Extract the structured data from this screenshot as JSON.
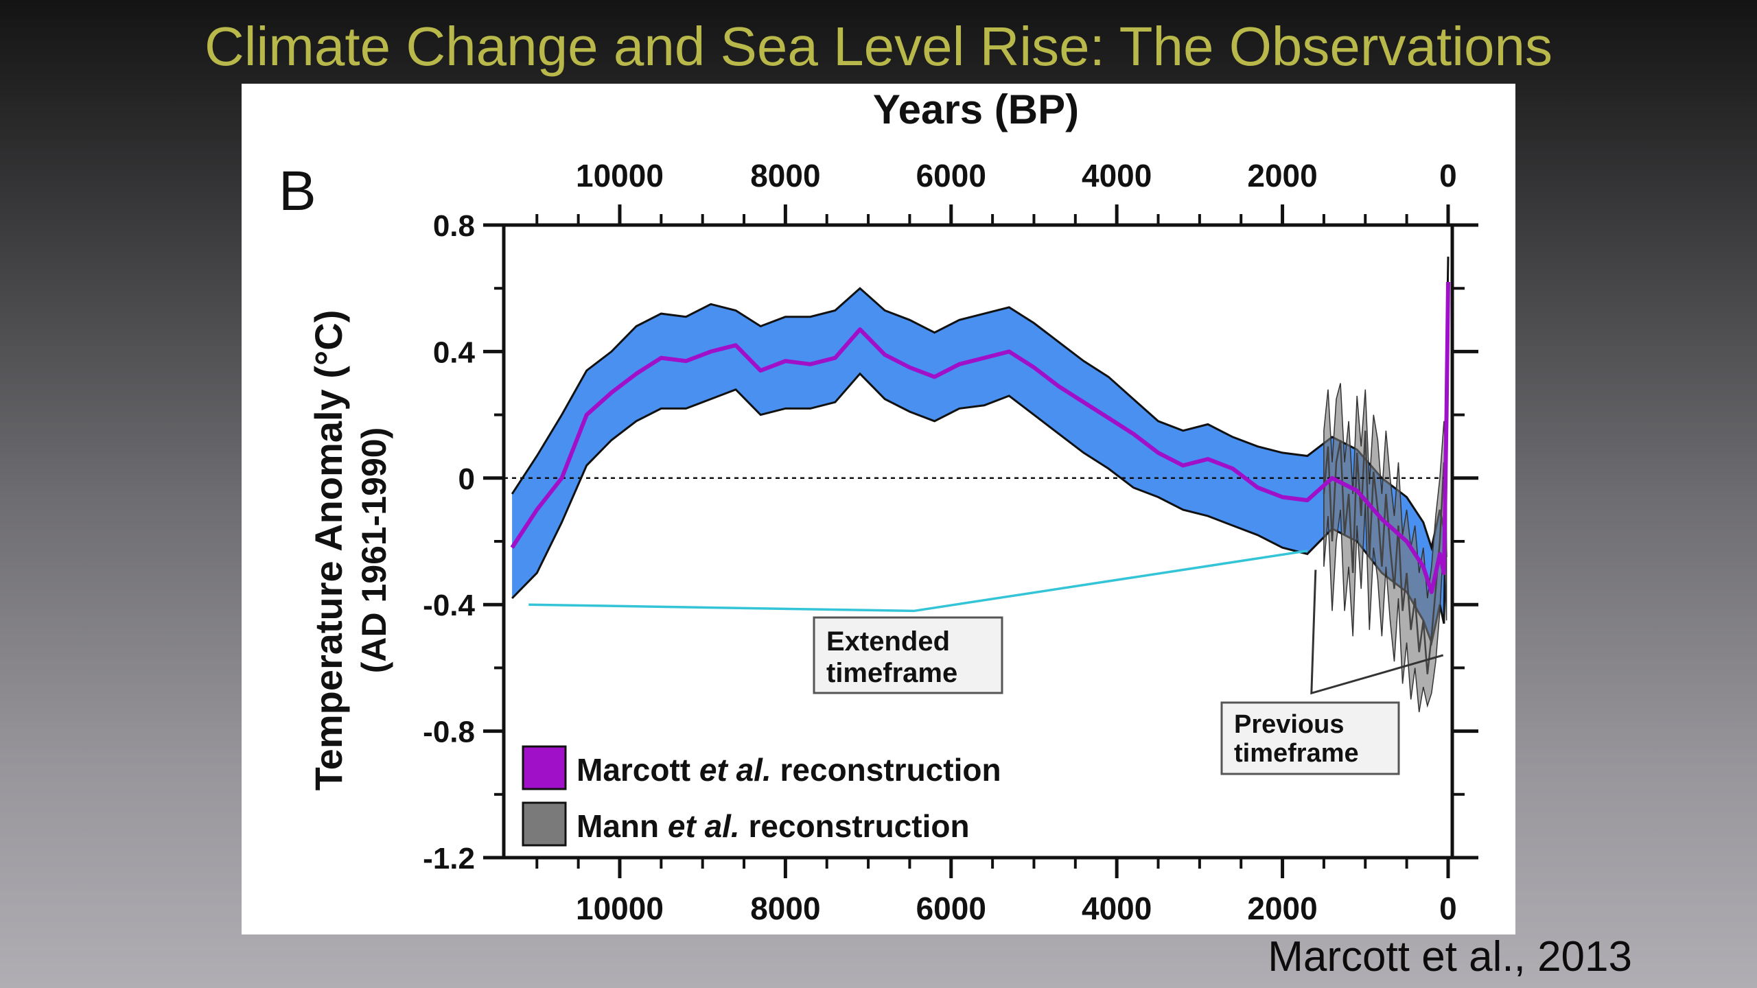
{
  "slide": {
    "title": "Climate Change and Sea Level Rise: The Observations",
    "citation": "Marcott et al., 2013"
  },
  "chart_data": {
    "type": "line",
    "panel_label": "B",
    "xlabel": "Years (BP)",
    "ylabel": "Temperature Anomaly (°C)",
    "ylabel2": "(AD 1961-1990)",
    "xlim": [
      11400,
      -50
    ],
    "ylim": [
      -1.2,
      0.8
    ],
    "x_ticks": [
      10000,
      8000,
      6000,
      4000,
      2000,
      0
    ],
    "x_tick_labels": [
      "10000",
      "8000",
      "6000",
      "4000",
      "2000",
      "0"
    ],
    "y_ticks": [
      0.8,
      0.4,
      0,
      -0.4,
      -0.8,
      -1.2
    ],
    "y_tick_labels": [
      "0.8",
      "0.4",
      "0",
      "-0.4",
      "-0.8",
      "-1.2"
    ],
    "zero_line": true,
    "colors": {
      "marcott": "#a010c8",
      "band": "#4a90f0",
      "band_outline": "#111111",
      "mann": "#7a7a7a",
      "leader": "#34c4d8"
    },
    "series": [
      {
        "name": "Marcott et al. reconstruction",
        "legend_main": "Marcott ",
        "legend_italic": "et al.",
        "legend_rest": " reconstruction",
        "x": [
          11300,
          11000,
          10700,
          10400,
          10100,
          9800,
          9500,
          9200,
          8900,
          8600,
          8300,
          8000,
          7700,
          7400,
          7100,
          6800,
          6500,
          6200,
          5900,
          5600,
          5300,
          5000,
          4700,
          4400,
          4100,
          3800,
          3500,
          3200,
          2900,
          2600,
          2300,
          2000,
          1700,
          1400,
          1100,
          800,
          500,
          300,
          200,
          150,
          100,
          50,
          20,
          0
        ],
        "y": [
          -0.22,
          -0.1,
          0.0,
          0.2,
          0.27,
          0.33,
          0.38,
          0.37,
          0.4,
          0.42,
          0.34,
          0.37,
          0.36,
          0.38,
          0.47,
          0.39,
          0.35,
          0.32,
          0.36,
          0.38,
          0.4,
          0.35,
          0.29,
          0.24,
          0.19,
          0.14,
          0.08,
          0.04,
          0.06,
          0.03,
          -0.03,
          -0.06,
          -0.07,
          0.0,
          -0.04,
          -0.13,
          -0.2,
          -0.28,
          -0.36,
          -0.3,
          -0.24,
          -0.3,
          0.2,
          0.62
        ],
        "upper": [
          -0.05,
          0.07,
          0.2,
          0.34,
          0.4,
          0.48,
          0.52,
          0.51,
          0.55,
          0.53,
          0.48,
          0.51,
          0.51,
          0.53,
          0.6,
          0.53,
          0.5,
          0.46,
          0.5,
          0.52,
          0.54,
          0.49,
          0.43,
          0.37,
          0.32,
          0.25,
          0.18,
          0.15,
          0.17,
          0.13,
          0.1,
          0.08,
          0.07,
          0.13,
          0.09,
          0.0,
          -0.06,
          -0.14,
          -0.22,
          -0.16,
          -0.1,
          -0.16,
          0.35,
          0.7
        ],
        "lower": [
          -0.38,
          -0.3,
          -0.14,
          0.04,
          0.12,
          0.18,
          0.22,
          0.22,
          0.25,
          0.28,
          0.2,
          0.22,
          0.22,
          0.24,
          0.33,
          0.25,
          0.21,
          0.18,
          0.22,
          0.23,
          0.26,
          0.2,
          0.14,
          0.08,
          0.03,
          -0.03,
          -0.06,
          -0.1,
          -0.12,
          -0.15,
          -0.18,
          -0.22,
          -0.24,
          -0.16,
          -0.2,
          -0.3,
          -0.36,
          -0.45,
          -0.52,
          -0.46,
          -0.4,
          -0.46,
          0.05,
          0.5
        ]
      },
      {
        "name": "Mann et al. reconstruction",
        "legend_main": "Mann ",
        "legend_italic": "et al.",
        "legend_rest": " reconstruction",
        "x": [
          1500,
          1450,
          1400,
          1350,
          1300,
          1250,
          1200,
          1150,
          1100,
          1050,
          1000,
          950,
          900,
          850,
          800,
          750,
          700,
          650,
          600,
          550,
          500,
          450,
          400,
          350,
          300,
          250,
          200,
          150,
          100,
          50,
          20
        ],
        "y": [
          -0.05,
          0.1,
          -0.2,
          0.05,
          0.12,
          -0.18,
          -0.05,
          -0.3,
          0.08,
          -0.12,
          0.15,
          -0.25,
          0.02,
          -0.1,
          -0.28,
          -0.05,
          -0.22,
          -0.35,
          -0.15,
          -0.42,
          -0.3,
          -0.48,
          -0.38,
          -0.55,
          -0.45,
          -0.62,
          -0.5,
          -0.35,
          -0.2,
          0.05,
          -0.25
        ],
        "upper": [
          0.15,
          0.28,
          0.05,
          0.25,
          0.3,
          0.05,
          0.18,
          -0.05,
          0.26,
          0.1,
          0.28,
          -0.02,
          0.2,
          0.12,
          -0.05,
          0.15,
          0.0,
          -0.12,
          0.05,
          -0.18,
          -0.1,
          -0.22,
          -0.15,
          -0.3,
          -0.22,
          -0.38,
          -0.28,
          -0.12,
          0.0,
          0.18,
          0.0
        ],
        "lower": [
          -0.28,
          -0.12,
          -0.42,
          -0.2,
          -0.1,
          -0.42,
          -0.28,
          -0.5,
          -0.15,
          -0.35,
          -0.08,
          -0.48,
          -0.22,
          -0.32,
          -0.5,
          -0.28,
          -0.45,
          -0.58,
          -0.38,
          -0.65,
          -0.52,
          -0.7,
          -0.6,
          -0.74,
          -0.66,
          -0.72,
          -0.68,
          -0.58,
          -0.42,
          -0.18,
          -0.45
        ]
      }
    ],
    "annotations": [
      {
        "lines": [
          "Extended",
          "timeframe"
        ]
      },
      {
        "lines": [
          "Previous",
          "timeframe"
        ]
      }
    ]
  }
}
